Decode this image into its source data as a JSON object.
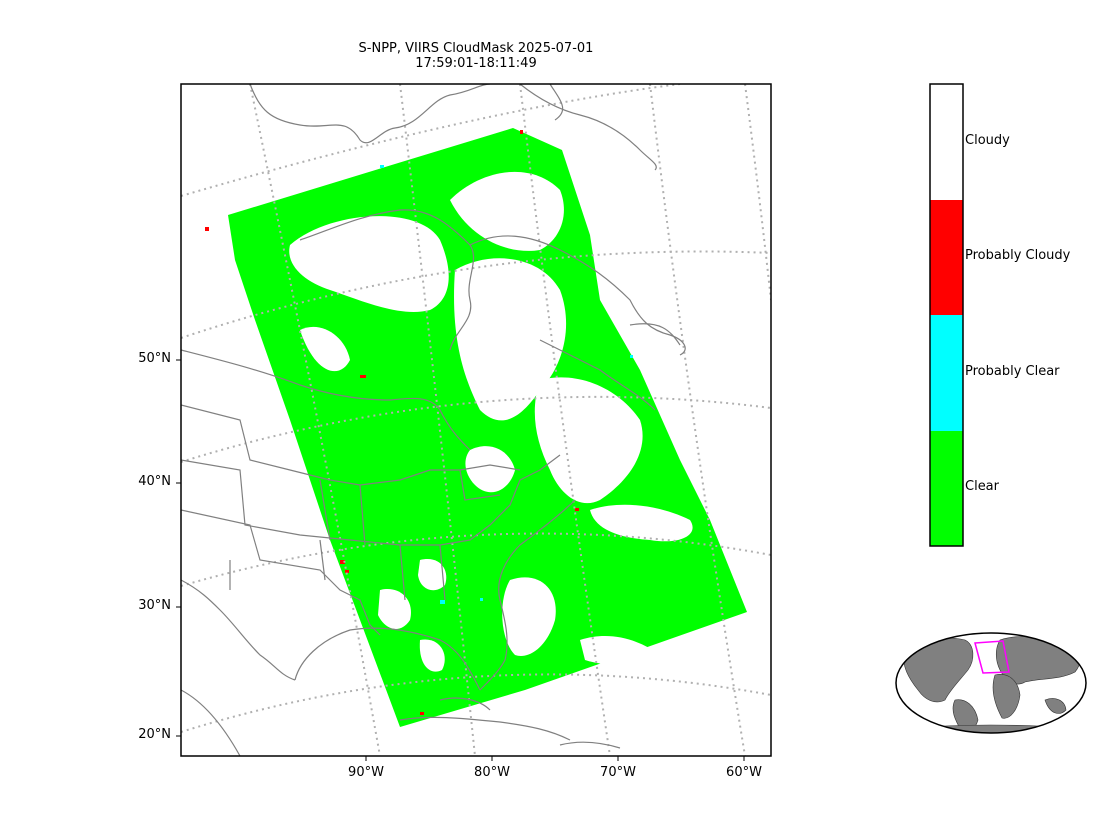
{
  "title": {
    "line1": "S-NPP, VIIRS CloudMask 2025-07-01",
    "line2": "17:59:01-18:11:49"
  },
  "map": {
    "lat_labels": [
      "50°N",
      "40°N",
      "30°N",
      "20°N"
    ],
    "lon_labels": [
      "90°W",
      "80°W",
      "70°W",
      "60°W"
    ],
    "colors": {
      "clear": "#00ff00",
      "probably_clear": "#00ffff",
      "probably_cloudy": "#ff0000",
      "cloudy": "#ffffff",
      "coastline": "#808080",
      "graticule": "#b0b0b0"
    }
  },
  "legend": {
    "categories": [
      {
        "label": "Cloudy",
        "color": "#ffffff"
      },
      {
        "label": "Probably Cloudy",
        "color": "#ff0000"
      },
      {
        "label": "Probably Clear",
        "color": "#00ffff"
      },
      {
        "label": "Clear",
        "color": "#00ff00"
      }
    ]
  },
  "inset": {
    "land_color": "#808080",
    "highlight_color": "#ff00ff"
  }
}
